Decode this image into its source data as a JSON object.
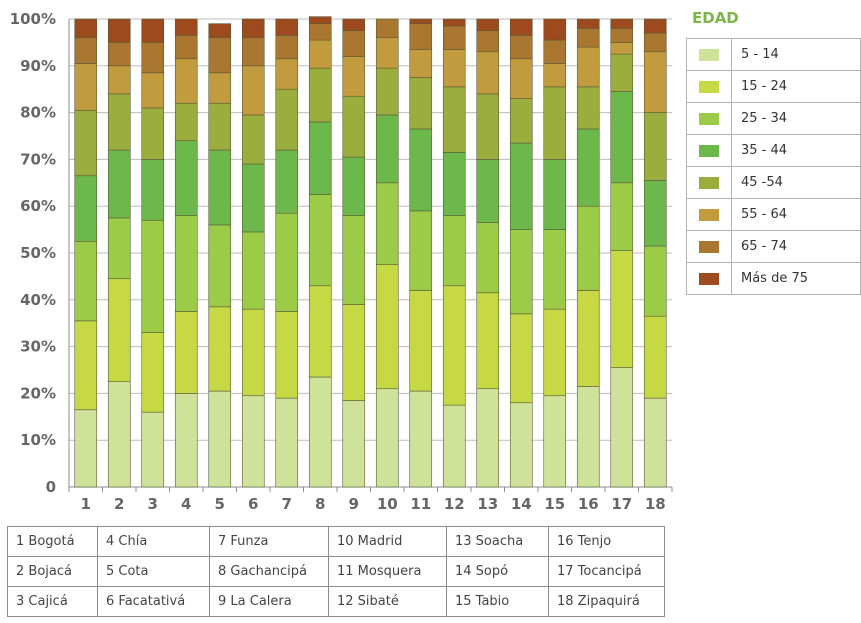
{
  "chart_data": {
    "type": "bar",
    "stacked": true,
    "categories": [
      "1",
      "2",
      "3",
      "4",
      "5",
      "6",
      "7",
      "8",
      "9",
      "10",
      "11",
      "12",
      "13",
      "14",
      "15",
      "16",
      "17",
      "18"
    ],
    "y_tick_labels": [
      "0",
      "10%",
      "20%",
      "30%",
      "40%",
      "50%",
      "60%",
      "70%",
      "80%",
      "90%",
      "100%"
    ],
    "ylim": [
      0,
      100
    ],
    "grid": true,
    "legend_title": "EDAD",
    "legend_position": "right",
    "series": [
      {
        "name": "5 - 14",
        "color": "#cfe29a",
        "values": [
          16.5,
          22.5,
          16,
          20,
          20.5,
          19.5,
          19,
          23.5,
          18.5,
          21,
          20.5,
          17.5,
          21,
          18,
          19.5,
          21.5,
          25.5,
          19
        ]
      },
      {
        "name": "15 - 24",
        "color": "#c6d945",
        "values": [
          19,
          22,
          17,
          17.5,
          18,
          18.5,
          18.5,
          19.5,
          20.5,
          26.5,
          21.5,
          25.5,
          20.5,
          19,
          18.5,
          20.5,
          25,
          17.5
        ]
      },
      {
        "name": "25 - 34",
        "color": "#9bcb47",
        "values": [
          17,
          13,
          24,
          20.5,
          17.5,
          16.5,
          21,
          19.5,
          19,
          17.5,
          17,
          15,
          15,
          18,
          17,
          18,
          14.5,
          15
        ]
      },
      {
        "name": "35 - 44",
        "color": "#6db84b",
        "values": [
          14,
          14.5,
          13,
          16,
          16,
          14.5,
          13.5,
          15.5,
          12.5,
          14.5,
          17.5,
          13.5,
          13.5,
          18.5,
          15,
          16.5,
          19.5,
          14
        ]
      },
      {
        "name": "45 -54",
        "color": "#9aad3d",
        "values": [
          14,
          12,
          11,
          8,
          10,
          10.5,
          13,
          11.5,
          13,
          10,
          11,
          14,
          14,
          9.5,
          15.5,
          9,
          8,
          14.5
        ]
      },
      {
        "name": "55 - 64",
        "color": "#c29b3e",
        "values": [
          10,
          6,
          7.5,
          9.5,
          6.5,
          10.5,
          6.5,
          6,
          8.5,
          6.5,
          6,
          8,
          9,
          8.5,
          5,
          8.5,
          2.5,
          13
        ]
      },
      {
        "name": "65 - 74",
        "color": "#a9772f",
        "values": [
          5.5,
          5,
          6.5,
          5,
          7.5,
          6,
          5,
          3.5,
          5.5,
          4,
          5.5,
          5,
          4.5,
          5,
          5,
          4,
          3,
          4
        ]
      },
      {
        "name": "Más de 75",
        "color": "#9c4a1e",
        "values": [
          4,
          5,
          5,
          3.5,
          3,
          4,
          3.5,
          1.5,
          2.5,
          0,
          1,
          1.5,
          2.5,
          3.5,
          4.5,
          2,
          2,
          3
        ]
      }
    ]
  },
  "cities": [
    [
      "1 Bogotá",
      "4 Chía",
      "7 Funza",
      "10 Madrid",
      "13 Soacha",
      "16 Tenjo"
    ],
    [
      "2 Bojacá",
      "5 Cota",
      "8 Gachancipá",
      "11 Mosquera",
      "14 Sopó",
      "17 Tocancipá"
    ],
    [
      "3 Cajicá",
      "6 Facatativá",
      "9 La Calera",
      "12 Sibaté",
      "15 Tabio",
      "18 Zipaquirá"
    ]
  ]
}
